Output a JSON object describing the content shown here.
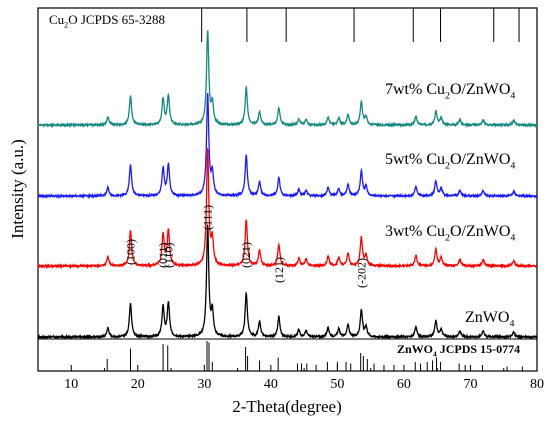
{
  "chart_data": {
    "type": "line",
    "title": "",
    "xlabel": "2-Theta(degree)",
    "ylabel": "Intensity (a.u.)",
    "xlim": [
      5,
      80
    ],
    "x_ticks": [
      10,
      20,
      30,
      40,
      50,
      60,
      70,
      80
    ],
    "y_ticks_shown": false,
    "grid": false,
    "legend": "none",
    "series": [
      {
        "key": "zn",
        "name": "ZnWO4",
        "color": "#000000",
        "label_parts": [
          "ZnWO",
          "4"
        ]
      },
      {
        "key": "c3",
        "name": "3wt% Cu2O/ZnWO4",
        "color": "#ff0000",
        "label_parts": [
          "3wt% Cu",
          "2",
          "O/ZnWO",
          "4"
        ]
      },
      {
        "key": "c5",
        "name": "5wt% Cu2O/ZnWO4",
        "color": "#1a1aff",
        "label_parts": [
          "5wt% Cu",
          "2",
          "O/ZnWO",
          "4"
        ]
      },
      {
        "key": "c7",
        "name": "7wt% Cu2O/ZnWO4",
        "color": "#138a7e",
        "label_parts": [
          "7wt% Cu",
          "2",
          "O/ZnWO",
          "4"
        ]
      }
    ],
    "peaks": [
      {
        "x": 15.5,
        "h": 9
      },
      {
        "x": 18.9,
        "h": 34
      },
      {
        "x": 23.8,
        "h": 30
      },
      {
        "x": 24.6,
        "h": 34
      },
      {
        "x": 30.5,
        "h": 110
      },
      {
        "x": 31.2,
        "h": 24
      },
      {
        "x": 36.3,
        "h": 44
      },
      {
        "x": 38.3,
        "h": 15
      },
      {
        "x": 41.2,
        "h": 20
      },
      {
        "x": 44.2,
        "h": 7
      },
      {
        "x": 45.3,
        "h": 6
      },
      {
        "x": 48.6,
        "h": 9
      },
      {
        "x": 50.2,
        "h": 8
      },
      {
        "x": 51.6,
        "h": 12
      },
      {
        "x": 53.6,
        "h": 27
      },
      {
        "x": 54.3,
        "h": 10
      },
      {
        "x": 61.8,
        "h": 10
      },
      {
        "x": 64.8,
        "h": 16
      },
      {
        "x": 65.6,
        "h": 8
      },
      {
        "x": 68.4,
        "h": 6
      },
      {
        "x": 71.9,
        "h": 6
      },
      {
        "x": 76.5,
        "h": 5
      }
    ],
    "miller_indices": [
      {
        "label": "(100)",
        "x": 18.9
      },
      {
        "label": "(011)",
        "x": 23.8
      },
      {
        "label": "(110)",
        "x": 24.6
      },
      {
        "label": "(111)",
        "x": 30.5
      },
      {
        "label": "(021)",
        "x": 36.3
      },
      {
        "label": "(121)",
        "x": 41.2
      },
      {
        "label": "(-202)",
        "x": 53.6
      }
    ],
    "reference_cu2o": {
      "label_parts": [
        "Cu",
        "2",
        "O JCPDS 65-3288"
      ],
      "x": [
        29.6,
        36.4,
        42.3,
        52.5,
        61.4,
        65.5,
        73.5,
        77.3
      ]
    },
    "reference_znwo4": {
      "label_parts": [
        "ZnWO",
        "4",
        " JCPDS 15-0774"
      ],
      "lines": [
        {
          "x": 15.4,
          "h": 0.4
        },
        {
          "x": 18.9,
          "h": 0.75
        },
        {
          "x": 23.8,
          "h": 0.9
        },
        {
          "x": 24.5,
          "h": 0.85
        },
        {
          "x": 30.4,
          "h": 1.0
        },
        {
          "x": 30.7,
          "h": 0.95
        },
        {
          "x": 31.2,
          "h": 0.3
        },
        {
          "x": 36.2,
          "h": 0.8
        },
        {
          "x": 36.5,
          "h": 0.5
        },
        {
          "x": 38.3,
          "h": 0.35
        },
        {
          "x": 41.1,
          "h": 0.45
        },
        {
          "x": 44.0,
          "h": 0.25
        },
        {
          "x": 44.6,
          "h": 0.25
        },
        {
          "x": 45.4,
          "h": 0.25
        },
        {
          "x": 46.8,
          "h": 0.2
        },
        {
          "x": 48.5,
          "h": 0.3
        },
        {
          "x": 50.0,
          "h": 0.3
        },
        {
          "x": 51.3,
          "h": 0.3
        },
        {
          "x": 52.0,
          "h": 0.25
        },
        {
          "x": 53.5,
          "h": 0.6
        },
        {
          "x": 53.9,
          "h": 0.5
        },
        {
          "x": 54.5,
          "h": 0.4
        },
        {
          "x": 55.5,
          "h": 0.25
        },
        {
          "x": 57.0,
          "h": 0.2
        },
        {
          "x": 58.5,
          "h": 0.2
        },
        {
          "x": 61.7,
          "h": 0.3
        },
        {
          "x": 62.5,
          "h": 0.25
        },
        {
          "x": 63.5,
          "h": 0.3
        },
        {
          "x": 64.3,
          "h": 0.35
        },
        {
          "x": 64.9,
          "h": 0.45
        },
        {
          "x": 65.5,
          "h": 0.3
        },
        {
          "x": 68.3,
          "h": 0.25
        },
        {
          "x": 69.2,
          "h": 0.2
        },
        {
          "x": 71.8,
          "h": 0.2
        },
        {
          "x": 75.5,
          "h": 0.15
        },
        {
          "x": 77.8,
          "h": 0.15
        }
      ]
    }
  }
}
